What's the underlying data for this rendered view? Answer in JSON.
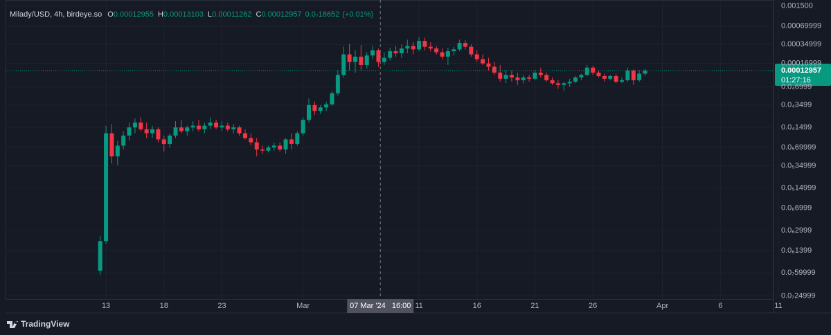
{
  "chart_data": {
    "type": "candlestick",
    "header": {
      "title": "Milady/USD, 4h, birdeye.so",
      "ohlc": [
        {
          "key": "O",
          "value": "0.00012955"
        },
        {
          "key": "H",
          "value": "0.00013103"
        },
        {
          "key": "L",
          "value": "0.00011262"
        },
        {
          "key": "C",
          "value": "0.00012957"
        }
      ],
      "change": "0.0₇18652",
      "change_pct": "(+0.01%)"
    },
    "log_scale": true,
    "grid": true,
    "up_color": "#089981",
    "down_color": "#f23645",
    "xlim": [
      "2024-02-04T08:00",
      "2024-04-10T14:00"
    ],
    "ylim": [
      2.22e-08,
      0.00189
    ],
    "xticks": [
      {
        "value": "2024-02-13T00:00",
        "label": "13"
      },
      {
        "value": "2024-02-18T00:00",
        "label": "18"
      },
      {
        "value": "2024-02-23T00:00",
        "label": "23"
      },
      {
        "value": "2024-03-01T00:00",
        "label": "Mar"
      },
      {
        "value": "2024-03-11T00:00",
        "label": "11"
      },
      {
        "value": "2024-03-16T00:00",
        "label": "16"
      },
      {
        "value": "2024-03-21T00:00",
        "label": "21"
      },
      {
        "value": "2024-03-26T00:00",
        "label": "26"
      },
      {
        "value": "2024-04-01T00:00",
        "label": "Apr"
      },
      {
        "value": "2024-04-06T00:00",
        "label": "6"
      },
      {
        "value": "2024-04-11T00:00",
        "label": "11"
      }
    ],
    "yticks": [
      {
        "value": 0.0015,
        "label": "0.001500"
      },
      {
        "value": 0.00069999,
        "label": "0.00069999"
      },
      {
        "value": 0.00034999,
        "label": "0.00034999"
      },
      {
        "value": 0.00016999,
        "label": "0.00016999"
      },
      {
        "value": 6.999e-05,
        "label": "0.0₄6999"
      },
      {
        "value": 3.499e-05,
        "label": "0.0₄3499"
      },
      {
        "value": 1.499e-05,
        "label": "0.0₄1499"
      },
      {
        "value": 6.9999e-06,
        "label": "0.0₅69999"
      },
      {
        "value": 3.4999e-06,
        "label": "0.0₅34999"
      },
      {
        "value": 1.4999e-06,
        "label": "0.0₅14999"
      },
      {
        "value": 6.999e-07,
        "label": "0.0₆6999"
      },
      {
        "value": 2.999e-07,
        "label": "0.0₆2999"
      },
      {
        "value": 1.399e-07,
        "label": "0.0₆1399"
      },
      {
        "value": 5.9999e-08,
        "label": "0.0₇59999"
      },
      {
        "value": 2.4999e-08,
        "label": "0.0₇24999"
      }
    ],
    "price_label": {
      "value": 0.00012957,
      "label": "0.00012957",
      "countdown": "01:27:16"
    },
    "crosshair": {
      "x": "2024-03-07T16:00",
      "label": "07 Mar '24   16:00"
    },
    "candles": {
      "x": [
        "2024-02-12T12:00",
        "2024-02-13T00:00",
        "2024-02-13T12:00",
        "2024-02-14T00:00",
        "2024-02-14T12:00",
        "2024-02-15T00:00",
        "2024-02-15T12:00",
        "2024-02-16T00:00",
        "2024-02-16T12:00",
        "2024-02-17T00:00",
        "2024-02-17T12:00",
        "2024-02-18T00:00",
        "2024-02-18T12:00",
        "2024-02-19T00:00",
        "2024-02-19T12:00",
        "2024-02-20T00:00",
        "2024-02-20T12:00",
        "2024-02-21T00:00",
        "2024-02-21T12:00",
        "2024-02-22T00:00",
        "2024-02-22T12:00",
        "2024-02-23T00:00",
        "2024-02-23T12:00",
        "2024-02-24T00:00",
        "2024-02-24T12:00",
        "2024-02-25T00:00",
        "2024-02-25T12:00",
        "2024-02-26T00:00",
        "2024-02-26T12:00",
        "2024-02-27T00:00",
        "2024-02-27T12:00",
        "2024-02-28T00:00",
        "2024-02-28T12:00",
        "2024-02-29T00:00",
        "2024-02-29T12:00",
        "2024-03-01T00:00",
        "2024-03-01T12:00",
        "2024-03-02T00:00",
        "2024-03-02T12:00",
        "2024-03-03T00:00",
        "2024-03-03T12:00",
        "2024-03-04T00:00",
        "2024-03-04T12:00",
        "2024-03-05T00:00",
        "2024-03-05T12:00",
        "2024-03-06T00:00",
        "2024-03-06T12:00",
        "2024-03-07T00:00",
        "2024-03-07T12:00",
        "2024-03-08T00:00",
        "2024-03-08T12:00",
        "2024-03-09T00:00",
        "2024-03-09T12:00",
        "2024-03-10T00:00",
        "2024-03-10T12:00",
        "2024-03-11T00:00",
        "2024-03-11T12:00",
        "2024-03-12T00:00",
        "2024-03-12T12:00",
        "2024-03-13T00:00",
        "2024-03-13T12:00",
        "2024-03-14T00:00",
        "2024-03-14T12:00",
        "2024-03-15T00:00",
        "2024-03-15T12:00",
        "2024-03-16T00:00",
        "2024-03-16T12:00",
        "2024-03-17T00:00",
        "2024-03-17T12:00",
        "2024-03-18T00:00",
        "2024-03-18T12:00",
        "2024-03-19T00:00",
        "2024-03-19T12:00",
        "2024-03-20T00:00",
        "2024-03-20T12:00",
        "2024-03-21T00:00",
        "2024-03-21T12:00",
        "2024-03-22T00:00",
        "2024-03-22T12:00",
        "2024-03-23T00:00",
        "2024-03-23T12:00",
        "2024-03-24T00:00",
        "2024-03-24T12:00",
        "2024-03-25T00:00",
        "2024-03-25T12:00",
        "2024-03-26T00:00",
        "2024-03-26T12:00",
        "2024-03-27T00:00",
        "2024-03-27T12:00",
        "2024-03-28T00:00",
        "2024-03-28T12:00",
        "2024-03-29T00:00",
        "2024-03-29T12:00",
        "2024-03-30T00:00",
        "2024-03-30T12:00"
      ],
      "open": [
        6.5e-08,
        2e-07,
        1.2e-05,
        5e-06,
        7.5e-06,
        1.1e-05,
        1.5e-05,
        1.8e-05,
        1.4e-05,
        1.2e-05,
        1.4e-05,
        9.5e-06,
        8e-06,
        1.1e-05,
        1.5e-05,
        1.3e-05,
        1.5e-05,
        1.6e-05,
        1.4e-05,
        1.6e-05,
        1.8e-05,
        1.5e-05,
        1.6e-05,
        1.4e-05,
        1.5e-05,
        1.2e-05,
        1e-05,
        8.5e-06,
        6.5e-06,
        6.2e-06,
        7e-06,
        7.5e-06,
        6.5e-06,
        9.5e-06,
        8e-06,
        1.2e-05,
        2e-05,
        3.5e-05,
        2.8e-05,
        3.2e-05,
        3.6e-05,
        5.5e-05,
        0.00011,
        0.00024,
        0.00018,
        0.00022,
        0.00016,
        0.00023,
        0.00028,
        0.00018,
        0.00021,
        0.00027,
        0.00025,
        0.0003,
        0.00033,
        0.00029,
        0.0004,
        0.00032,
        0.0003,
        0.00026,
        0.00022,
        0.00027,
        0.00029,
        0.00037,
        0.00032,
        0.00024,
        0.0002,
        0.00017,
        0.00015,
        0.00012,
        9.5e-05,
        0.00011,
        0.0001,
        9e-05,
        0.0001,
        9.5e-05,
        0.00012,
        0.00011,
        9e-05,
        8e-05,
        7.5e-05,
        8e-05,
        8.5e-05,
        0.0001,
        0.00011,
        0.000145,
        0.00012,
        0.000105,
        9.5e-05,
        0.000105,
        8.5e-05,
        9e-05,
        0.00013,
        9e-05,
        0.000115
      ],
      "high": [
        2.4e-07,
        1.6e-05,
        1.7e-05,
        9e-06,
        1.3e-05,
        1.8e-05,
        2.1e-05,
        2.2e-05,
        1.8e-05,
        1.6e-05,
        1.5e-05,
        1.1e-05,
        1.2e-05,
        1.9e-05,
        2e-05,
        1.6e-05,
        1.9e-05,
        2e-05,
        1.8e-05,
        2.2e-05,
        2e-05,
        1.9e-05,
        1.8e-05,
        1.7e-05,
        1.6e-05,
        1.4e-05,
        1.2e-05,
        1e-05,
        7.5e-06,
        7.5e-06,
        8.5e-06,
        8.5e-06,
        1e-05,
        1.2e-05,
        1.3e-05,
        2.2e-05,
        4.5e-05,
        4e-05,
        3.5e-05,
        4e-05,
        6e-05,
        0.00013,
        0.00032,
        0.00036,
        0.00028,
        0.00034,
        0.00026,
        0.00033,
        0.0003,
        0.00026,
        0.00031,
        0.00033,
        0.00035,
        0.00042,
        0.00038,
        0.00046,
        0.00045,
        0.00038,
        0.00033,
        0.0003,
        0.00031,
        0.00032,
        0.00042,
        0.00041,
        0.00035,
        0.00028,
        0.00024,
        0.00021,
        0.00018,
        0.00016,
        0.00013,
        0.00013,
        0.00012,
        0.00011,
        0.00011,
        0.00013,
        0.000145,
        0.00012,
        0.0001,
        9e-05,
        8.5e-05,
        9.5e-05,
        0.000105,
        0.000115,
        0.00016,
        0.000155,
        0.00013,
        0.000115,
        0.00011,
        0.000115,
        0.0001,
        0.000145,
        0.000135,
        0.00013,
        0.00014
      ],
      "low": [
        5.5e-08,
        1.8e-07,
        3.8e-06,
        3.6e-06,
        6.5e-06,
        9e-06,
        1.2e-05,
        1.3e-05,
        1e-05,
        1e-05,
        8.5e-06,
        6e-06,
        7e-06,
        1e-05,
        1.2e-05,
        1.1e-05,
        1.3e-05,
        1.3e-05,
        1.2e-05,
        1.4e-05,
        1.4e-05,
        1.3e-05,
        1.3e-05,
        1.2e-05,
        1.1e-05,
        9.5e-06,
        7.5e-06,
        5e-06,
        5.5e-06,
        5.8e-06,
        6.2e-06,
        6e-06,
        5.5e-06,
        6.5e-06,
        7.5e-06,
        1.1e-05,
        1.8e-05,
        2.4e-05,
        2.5e-05,
        2.8e-05,
        3.4e-05,
        5e-05,
        0.0001,
        0.00013,
        0.00012,
        0.00013,
        0.00014,
        0.0002,
        0.00015,
        0.00016,
        0.00019,
        0.00022,
        0.00021,
        0.00025,
        0.00024,
        0.00027,
        0.00028,
        0.00027,
        0.00024,
        0.0002,
        0.00016,
        0.00023,
        0.00027,
        0.00029,
        0.00022,
        0.00018,
        0.00016,
        0.00013,
        0.00011,
        8.5e-05,
        8e-05,
        8.5e-05,
        7.5e-05,
        8e-05,
        8.5e-05,
        9e-05,
        0.0001,
        8.5e-05,
        7.5e-05,
        6.5e-05,
        6e-05,
        7e-05,
        8e-05,
        9e-05,
        0.000105,
        0.00011,
        0.0001,
        8.5e-05,
        9e-05,
        8e-05,
        8e-05,
        8.5e-05,
        7.5e-05,
        8.5e-05,
        0.000105
      ],
      "close": [
        2e-07,
        1.2e-05,
        5e-06,
        7.5e-06,
        1.1e-05,
        1.5e-05,
        1.8e-05,
        1.4e-05,
        1.2e-05,
        1.4e-05,
        9.5e-06,
        8e-06,
        1.1e-05,
        1.5e-05,
        1.3e-05,
        1.5e-05,
        1.6e-05,
        1.4e-05,
        1.6e-05,
        1.8e-05,
        1.5e-05,
        1.6e-05,
        1.4e-05,
        1.5e-05,
        1.2e-05,
        1e-05,
        8.5e-06,
        6.5e-06,
        6.2e-06,
        7e-06,
        7.5e-06,
        6.5e-06,
        9.5e-06,
        8e-06,
        1.2e-05,
        2e-05,
        3.5e-05,
        2.8e-05,
        3.2e-05,
        3.6e-05,
        5.5e-05,
        0.00011,
        0.00024,
        0.00018,
        0.00022,
        0.00016,
        0.00023,
        0.00028,
        0.00018,
        0.00021,
        0.00027,
        0.00025,
        0.0003,
        0.00033,
        0.00029,
        0.0004,
        0.00032,
        0.0003,
        0.00026,
        0.00022,
        0.00027,
        0.00029,
        0.00037,
        0.00032,
        0.00024,
        0.0002,
        0.00017,
        0.00015,
        0.00012,
        9.5e-05,
        0.00011,
        0.0001,
        9e-05,
        0.0001,
        9.5e-05,
        0.00012,
        0.00011,
        9e-05,
        8e-05,
        7.5e-05,
        8e-05,
        8.5e-05,
        0.0001,
        0.00011,
        0.000145,
        0.00012,
        0.000105,
        9.5e-05,
        0.000105,
        8.5e-05,
        9e-05,
        0.00013,
        9e-05,
        0.000115,
        0.00012957
      ]
    }
  },
  "footer": {
    "brand": "TradingView"
  }
}
